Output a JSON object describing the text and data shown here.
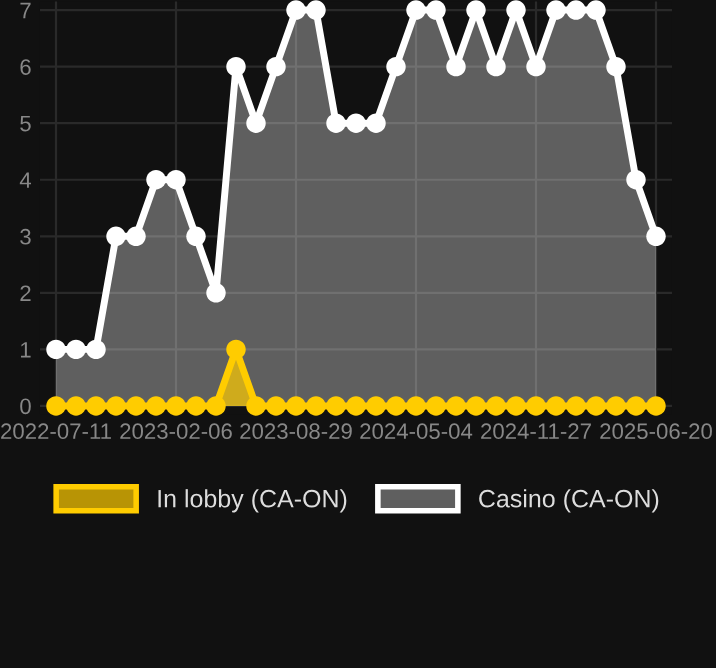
{
  "chart_data": {
    "type": "area",
    "categories": [
      "2022-07-11",
      null,
      null,
      null,
      null,
      null,
      "2023-02-06",
      null,
      null,
      null,
      null,
      null,
      "2023-08-29",
      null,
      null,
      null,
      null,
      null,
      "2024-05-04",
      null,
      null,
      null,
      null,
      null,
      "2024-11-27",
      null,
      null,
      null,
      null,
      null,
      "2025-06-20"
    ],
    "series": [
      {
        "name": "In lobby (CA-ON)",
        "color": "#ffcc00",
        "values": [
          0,
          0,
          0,
          0,
          0,
          0,
          0,
          0,
          0,
          1,
          0,
          0,
          0,
          0,
          0,
          0,
          0,
          0,
          0,
          0,
          0,
          0,
          0,
          0,
          0,
          0,
          0,
          0,
          0,
          0,
          0
        ]
      },
      {
        "name": "Casino (CA-ON)",
        "color": "#ffffff",
        "values": [
          1,
          1,
          1,
          3,
          3,
          4,
          4,
          3,
          2,
          6,
          5,
          6,
          7,
          7,
          5,
          5,
          5,
          6,
          7,
          7,
          6,
          7,
          6,
          7,
          6,
          7,
          7,
          7,
          6,
          4,
          3
        ]
      }
    ],
    "ylim": [
      -0.15,
      7.15
    ],
    "yticks": [
      0,
      1,
      2,
      3,
      4,
      5,
      6,
      7
    ],
    "grid": true,
    "legend": "bottom",
    "marker": "circle",
    "line_style": "solid"
  }
}
